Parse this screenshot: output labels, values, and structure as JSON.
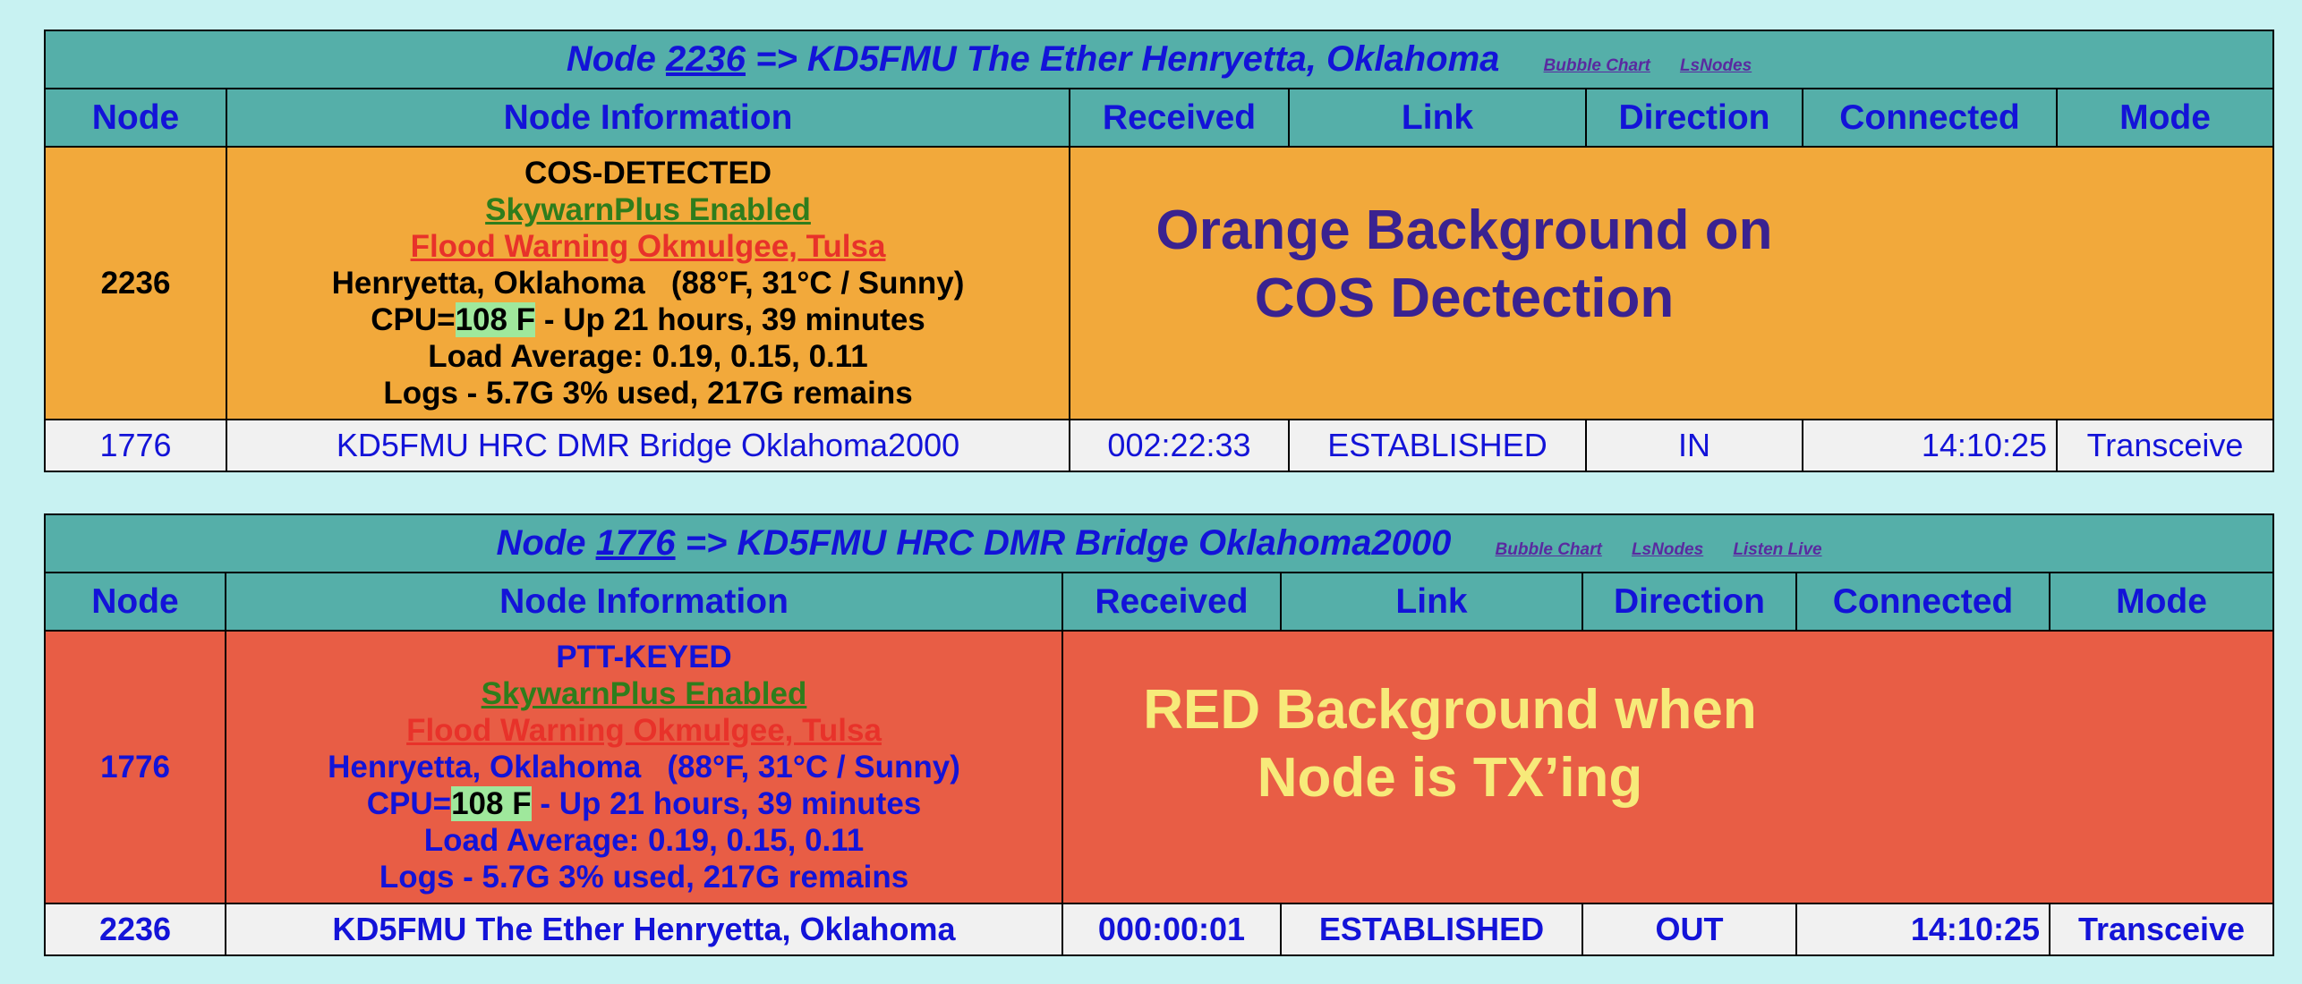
{
  "panels": [
    {
      "title": {
        "prefix": "Node ",
        "node": "2236",
        "suffix": " => KD5FMU The Ether Henryetta, Oklahoma",
        "links": [
          "Bubble Chart",
          "LsNodes"
        ]
      },
      "headers": [
        "Node",
        "Node Information",
        "Received",
        "Link",
        "Direction",
        "Connected",
        "Mode"
      ],
      "status": {
        "node": "2236",
        "state": "COS-DETECTED",
        "skywarn": "SkywarnPlus Enabled",
        "alert": "Flood Warning Okmulgee, Tulsa",
        "location": "Henryetta, Oklahoma   (88°F, 31°C / Sunny)",
        "cpu_prefix": "CPU=",
        "cpu_temp": "108 F",
        "cpu_suffix": " - Up 21 hours, 39 minutes",
        "load": "Load Average: 0.19, 0.15, 0.11",
        "logs": "Logs - 5.7G 3% used, 217G remains",
        "annotation_line1": "Orange Background on",
        "annotation_line2": "COS Dectection",
        "background": "#f2a93b"
      },
      "connection": {
        "node": "1776",
        "info": "KD5FMU HRC DMR Bridge Oklahoma2000",
        "received": "002:22:33",
        "link": "ESTABLISHED",
        "direction": "IN",
        "connected": "14:10:25",
        "mode": "Transceive"
      }
    },
    {
      "title": {
        "prefix": "Node ",
        "node": "1776",
        "suffix": " => KD5FMU HRC DMR Bridge Oklahoma2000",
        "links": [
          "Bubble Chart",
          "LsNodes",
          "Listen Live"
        ]
      },
      "headers": [
        "Node",
        "Node Information",
        "Received",
        "Link",
        "Direction",
        "Connected",
        "Mode"
      ],
      "status": {
        "node": "1776",
        "state": "PTT-KEYED",
        "skywarn": "SkywarnPlus Enabled",
        "alert": "Flood Warning Okmulgee, Tulsa",
        "location": "Henryetta, Oklahoma   (88°F, 31°C / Sunny)",
        "cpu_prefix": "CPU=",
        "cpu_temp": "108 F",
        "cpu_suffix": " - Up 21 hours, 39 minutes",
        "load": "Load Average: 0.19, 0.15, 0.11",
        "logs": "Logs - 5.7G 3% used, 217G remains",
        "annotation_line1": "RED Background when",
        "annotation_line2": "Node is TX’ing",
        "background": "#e85d45"
      },
      "connection": {
        "node": "2236",
        "info": "KD5FMU The Ether Henryetta, Oklahoma",
        "received": "000:00:01",
        "link": "ESTABLISHED",
        "direction": "OUT",
        "connected": "14:10:25",
        "mode": "Transceive"
      }
    }
  ],
  "colors": {
    "page_background": "#c8f2f2",
    "header_background": "#55afa9",
    "header_text": "#1313d8",
    "cos_background": "#f2a93b",
    "tx_background": "#e85d45",
    "cpu_highlight": "#9fe89c",
    "skywarn_text": "#2f7d1c",
    "alert_text": "#e8322a"
  }
}
